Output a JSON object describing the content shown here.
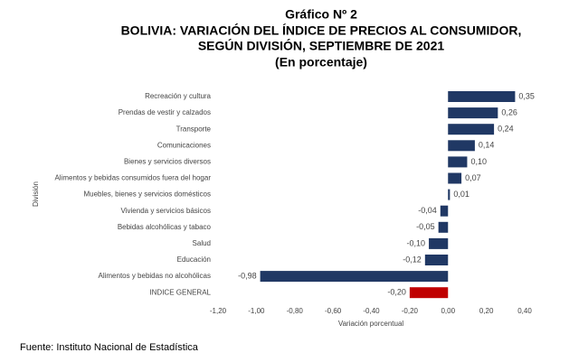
{
  "chart_data": {
    "type": "hbar",
    "title": "Gráfico Nº 2",
    "subtitle": [
      "BOLIVIA: VARIACIÓN DEL ÍNDICE DE PRECIOS AL CONSUMIDOR,",
      "SEGÚN DIVISIÓN, SEPTIEMBRE DE 2021",
      "(En porcentaje)"
    ],
    "x_label": "Variación porcentual",
    "y_label": "División",
    "source": "Fuente: Instituto Nacional de Estadística",
    "categories": [
      "Recreación y cultura",
      "Prendas de vestir y calzados",
      "Transporte",
      "Comunicaciones",
      "Bienes y servicios diversos",
      "Alimentos y bebidas consumidos fuera del hogar",
      "Muebles, bienes y servicios domésticos",
      "Vivienda y servicios básicos",
      "Bebidas alcohólicas y tabaco",
      "Salud",
      "Educación",
      "Alimentos y bebidas no alcohólicas",
      "INDICE GENERAL"
    ],
    "values": [
      0.35,
      0.26,
      0.24,
      0.14,
      0.1,
      0.07,
      0.01,
      -0.04,
      -0.05,
      -0.1,
      -0.12,
      -0.98,
      -0.2
    ],
    "value_labels": [
      "0,35",
      "0,26",
      "0,24",
      "0,14",
      "0,10",
      "0,07",
      "0,01",
      "-0,04",
      "-0,05",
      "-0,10",
      "-0,12",
      "-0,98",
      "-0,20"
    ],
    "colors": [
      "#203864",
      "#203864",
      "#203864",
      "#203864",
      "#203864",
      "#203864",
      "#203864",
      "#203864",
      "#203864",
      "#203864",
      "#203864",
      "#203864",
      "#c00000"
    ],
    "xlim": [
      -1.2,
      0.4
    ],
    "xticks": [
      {
        "value": -1.2,
        "label": "-1,20"
      },
      {
        "value": -1.0,
        "label": "-1,00"
      },
      {
        "value": -0.8,
        "label": "-0,80"
      },
      {
        "value": -0.6,
        "label": "-0,60"
      },
      {
        "value": -0.4,
        "label": "-0,40"
      },
      {
        "value": -0.2,
        "label": "-0,20"
      },
      {
        "value": 0,
        "label": "0,00"
      },
      {
        "value": 0.2,
        "label": "0,20"
      },
      {
        "value": 0.4,
        "label": "0,40"
      }
    ],
    "grid": false
  }
}
